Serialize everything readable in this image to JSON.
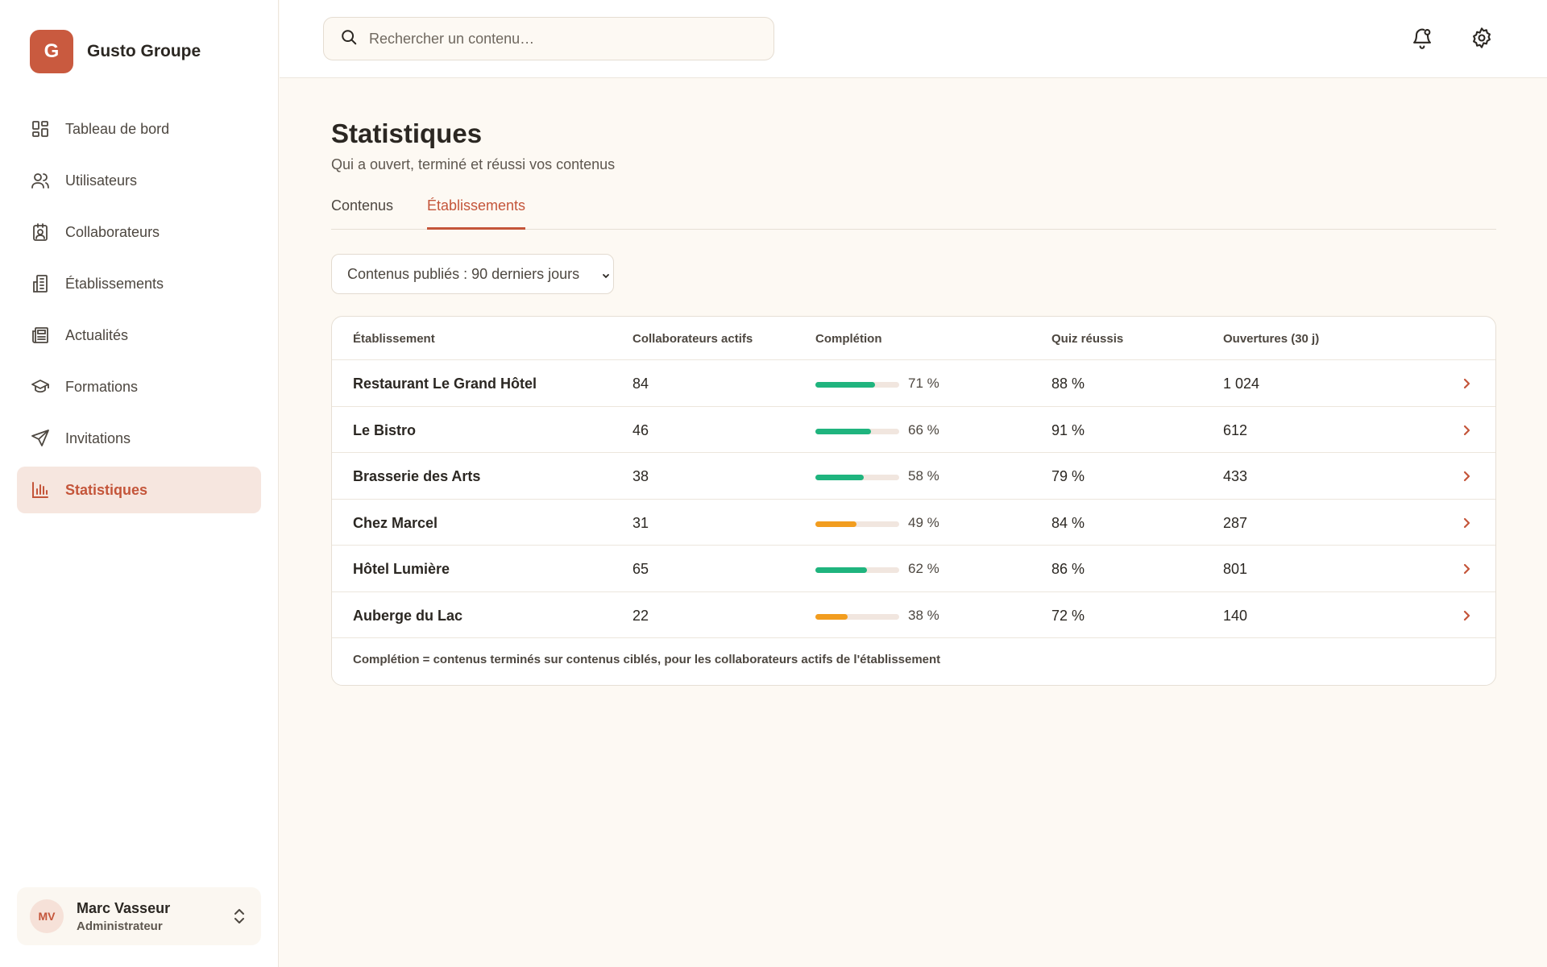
{
  "brand": {
    "initial": "G",
    "name": "Gusto Groupe",
    "color": "#c95a3f"
  },
  "sidebar": {
    "items": [
      {
        "label": "Tableau de bord",
        "icon": "dashboard-icon",
        "active": false
      },
      {
        "label": "Utilisateurs",
        "icon": "users-icon",
        "active": false
      },
      {
        "label": "Collaborateurs",
        "icon": "badge-icon",
        "active": false
      },
      {
        "label": "Établissements",
        "icon": "building-icon",
        "active": false
      },
      {
        "label": "Actualités",
        "icon": "newspaper-icon",
        "active": false
      },
      {
        "label": "Formations",
        "icon": "graduation-cap-icon",
        "active": false
      },
      {
        "label": "Invitations",
        "icon": "send-icon",
        "active": false
      },
      {
        "label": "Statistiques",
        "icon": "bar-chart-icon",
        "active": true
      }
    ]
  },
  "user": {
    "initials": "MV",
    "name": "Marc Vasseur",
    "role": "Administrateur"
  },
  "search": {
    "placeholder": "Rechercher un contenu…"
  },
  "header": {
    "notifications_icon": "bell-icon",
    "settings_icon": "gear-icon"
  },
  "page": {
    "title": "Statistiques",
    "subtitle": "Qui a ouvert, terminé et réussi vos contenus"
  },
  "tabs": [
    {
      "label": "Contenus",
      "active": false
    },
    {
      "label": "Établissements",
      "active": true
    }
  ],
  "filter": {
    "label": "Contenus publiés : 90 derniers jours"
  },
  "table": {
    "columns": [
      "Établissement",
      "Collaborateurs actifs",
      "Complétion",
      "Quiz réussis",
      "Ouvertures (30 j)"
    ],
    "rows": [
      {
        "name": "Restaurant Le Grand Hôtel",
        "active": "84",
        "completion": 71,
        "completion_label": "71 %",
        "quiz": "88 %",
        "opens": "1 024",
        "bar_color": "#1fb47e"
      },
      {
        "name": "Le Bistro",
        "active": "46",
        "completion": 66,
        "completion_label": "66 %",
        "quiz": "91 %",
        "opens": "612",
        "bar_color": "#1fb47e"
      },
      {
        "name": "Brasserie des Arts",
        "active": "38",
        "completion": 58,
        "completion_label": "58 %",
        "quiz": "79 %",
        "opens": "433",
        "bar_color": "#1fb47e"
      },
      {
        "name": "Chez Marcel",
        "active": "31",
        "completion": 49,
        "completion_label": "49 %",
        "quiz": "84 %",
        "opens": "287",
        "bar_color": "#f29d1f"
      },
      {
        "name": "Hôtel Lumière",
        "active": "65",
        "completion": 62,
        "completion_label": "62 %",
        "quiz": "86 %",
        "opens": "801",
        "bar_color": "#1fb47e"
      },
      {
        "name": "Auberge du Lac",
        "active": "22",
        "completion": 38,
        "completion_label": "38 %",
        "quiz": "72 %",
        "opens": "140",
        "bar_color": "#f29d1f"
      }
    ],
    "footnote": "Complétion = contenus terminés sur contenus ciblés, pour les collaborateurs actifs de l'établissement"
  },
  "colors": {
    "accent": "#c4553a",
    "active_bg": "#f6e6df",
    "good": "#1fb47e",
    "warn": "#f29d1f"
  }
}
